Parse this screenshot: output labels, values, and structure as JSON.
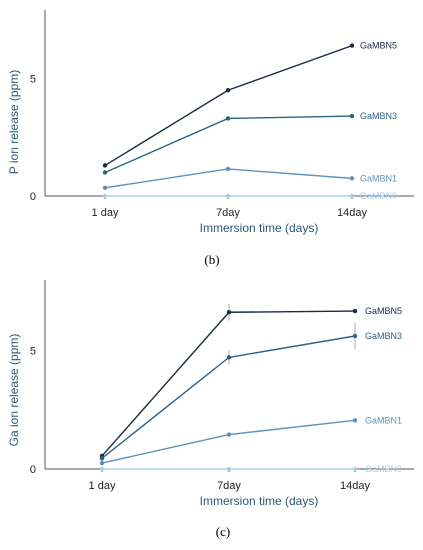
{
  "chart_data": [
    {
      "type": "line",
      "panel_label": "(b)",
      "xlabel": "Immersion time (days)",
      "ylabel": "P ion release (ppm)",
      "categories": [
        "1 day",
        "7day",
        "14day"
      ],
      "ylim": [
        0,
        8
      ],
      "yticks": [
        0,
        5
      ],
      "grid": false,
      "legend": "inline labels at line ends",
      "series": [
        {
          "name": "GaMBN5",
          "values": [
            1.3,
            4.5,
            6.4
          ],
          "color": "#1b2b44"
        },
        {
          "name": "GaMBN3",
          "values": [
            1.0,
            3.3,
            3.4
          ],
          "color": "#2c6384"
        },
        {
          "name": "GaMBN1",
          "values": [
            0.35,
            1.15,
            0.75
          ],
          "color": "#5e92ba"
        },
        {
          "name": "GaMBN0",
          "values": [
            0.0,
            0.0,
            0.0
          ],
          "color": "#a9d0e6"
        }
      ]
    },
    {
      "type": "line",
      "panel_label": "(c)",
      "xlabel": "Immersion time (days)",
      "ylabel": "Ga ion release (ppm)",
      "categories": [
        "1 day",
        "7day",
        "14day"
      ],
      "ylim": [
        0,
        8
      ],
      "yticks": [
        0,
        5
      ],
      "grid": false,
      "legend": "inline labels at line ends",
      "series": [
        {
          "name": "GaMBN5",
          "values": [
            0.55,
            6.6,
            6.65
          ],
          "errors": [
            0.1,
            0.35,
            0.05
          ],
          "color": "#1b2b44"
        },
        {
          "name": "GaMBN3",
          "values": [
            0.45,
            4.7,
            5.6
          ],
          "errors": [
            0.1,
            0.3,
            0.55
          ],
          "color": "#2c6384"
        },
        {
          "name": "GaMBN1",
          "values": [
            0.25,
            1.45,
            2.05
          ],
          "errors": [
            0,
            0,
            0
          ],
          "color": "#5e92ba"
        },
        {
          "name": "GaMBN0",
          "values": [
            0.0,
            0.0,
            0.0
          ],
          "errors": [
            0,
            0,
            0
          ],
          "color": "#a9d0e6"
        }
      ]
    }
  ]
}
